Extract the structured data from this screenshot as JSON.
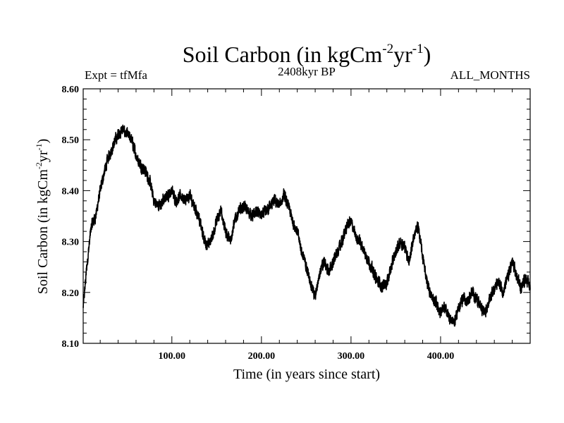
{
  "chart_data": {
    "type": "line",
    "title": "Soil Carbon (in kgCm",
    "title_sup1": "-2",
    "title_mid": "yr",
    "title_sup2": "-1",
    "title_end": ")",
    "subtitle_center": "2408kyr BP",
    "label_left": "Expt = tfMfa",
    "label_right": "ALL_MONTHS",
    "xlabel": "Time (in years since start)",
    "ylabel": {
      "p1": "Soil Carbon (in kgCm",
      "s1": "-2",
      "p2": "yr",
      "s2": "-1",
      "p3": ")"
    },
    "xlim": [
      1,
      500
    ],
    "ylim": [
      8.1,
      8.6
    ],
    "x_ticks": [
      100,
      200,
      300,
      400
    ],
    "x_tick_labels": [
      "100.00",
      "200.00",
      "300.00",
      "400.00"
    ],
    "y_ticks": [
      8.1,
      8.2,
      8.3,
      8.4,
      8.5,
      8.6
    ],
    "y_tick_labels": [
      "8.10",
      "8.20",
      "8.30",
      "8.40",
      "8.50",
      "8.60"
    ],
    "series": [
      {
        "name": "Soil Carbon",
        "x": [
          1,
          5,
          10,
          15,
          20,
          25,
          30,
          35,
          40,
          45,
          50,
          55,
          60,
          65,
          70,
          75,
          80,
          85,
          90,
          95,
          100,
          105,
          110,
          115,
          120,
          125,
          130,
          135,
          140,
          145,
          150,
          155,
          160,
          165,
          170,
          175,
          180,
          185,
          190,
          195,
          200,
          205,
          210,
          215,
          220,
          225,
          230,
          235,
          240,
          245,
          250,
          255,
          260,
          265,
          270,
          275,
          280,
          285,
          290,
          295,
          300,
          305,
          310,
          315,
          320,
          325,
          330,
          335,
          340,
          345,
          350,
          355,
          360,
          365,
          370,
          375,
          380,
          385,
          390,
          395,
          400,
          405,
          410,
          415,
          420,
          425,
          430,
          435,
          440,
          445,
          450,
          455,
          460,
          465,
          470,
          475,
          480,
          485,
          490,
          495,
          500
        ],
        "values": [
          8.17,
          8.25,
          8.33,
          8.35,
          8.4,
          8.44,
          8.47,
          8.49,
          8.51,
          8.52,
          8.51,
          8.5,
          8.47,
          8.45,
          8.44,
          8.42,
          8.38,
          8.37,
          8.38,
          8.39,
          8.4,
          8.38,
          8.39,
          8.38,
          8.39,
          8.37,
          8.35,
          8.31,
          8.29,
          8.31,
          8.34,
          8.36,
          8.32,
          8.3,
          8.34,
          8.36,
          8.37,
          8.36,
          8.35,
          8.36,
          8.35,
          8.36,
          8.37,
          8.38,
          8.37,
          8.39,
          8.37,
          8.34,
          8.32,
          8.28,
          8.25,
          8.22,
          8.19,
          8.24,
          8.26,
          8.24,
          8.26,
          8.28,
          8.3,
          8.33,
          8.34,
          8.31,
          8.3,
          8.28,
          8.26,
          8.24,
          8.22,
          8.21,
          8.22,
          8.25,
          8.28,
          8.3,
          8.29,
          8.26,
          8.31,
          8.33,
          8.27,
          8.22,
          8.19,
          8.18,
          8.16,
          8.17,
          8.15,
          8.14,
          8.17,
          8.19,
          8.18,
          8.2,
          8.19,
          8.17,
          8.16,
          8.19,
          8.21,
          8.22,
          8.2,
          8.23,
          8.26,
          8.23,
          8.21,
          8.23,
          8.21
        ]
      }
    ]
  }
}
